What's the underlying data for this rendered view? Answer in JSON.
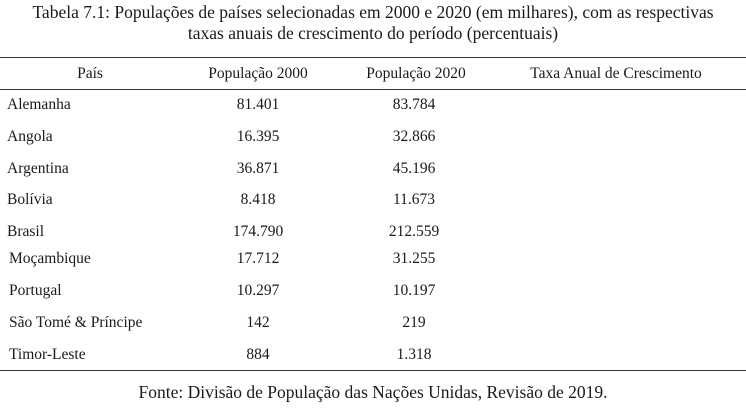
{
  "caption": {
    "line1": "Tabela 7.1: Populações de países selecionadas em 2000 e 2020 (em milhares), com as respectivas",
    "line2": "taxas anuais de crescimento do período (percentuais)"
  },
  "table": {
    "headers": {
      "pais": "País",
      "pop2000": "População 2000",
      "pop2020": "População 2020",
      "taxa": "Taxa Anual de Crescimento"
    },
    "rows": [
      {
        "pais": "Alemanha",
        "pop2000": "81.401",
        "pop2020": "83.784",
        "taxa": ""
      },
      {
        "pais": "Angola",
        "pop2000": "16.395",
        "pop2020": "32.866",
        "taxa": ""
      },
      {
        "pais": "Argentina",
        "pop2000": "36.871",
        "pop2020": "45.196",
        "taxa": ""
      },
      {
        "pais": "Bolívia",
        "pop2000": "8.418",
        "pop2020": "11.673",
        "taxa": ""
      },
      {
        "pais": "Brasil",
        "pop2000": "174.790",
        "pop2020": "212.559",
        "taxa": ""
      },
      {
        "pais": "Moçambique",
        "pop2000": "17.712",
        "pop2020": "31.255",
        "taxa": ""
      },
      {
        "pais": "Portugal",
        "pop2000": "10.297",
        "pop2020": "10.197",
        "taxa": ""
      },
      {
        "pais": "São Tomé & Príncipe",
        "pop2000": "142",
        "pop2020": "219",
        "taxa": ""
      },
      {
        "pais": "Timor-Leste",
        "pop2000": "884",
        "pop2020": "1.318",
        "taxa": ""
      }
    ]
  },
  "source": "Fonte: Divisão de População das Nações Unidas, Revisão de 2019."
}
